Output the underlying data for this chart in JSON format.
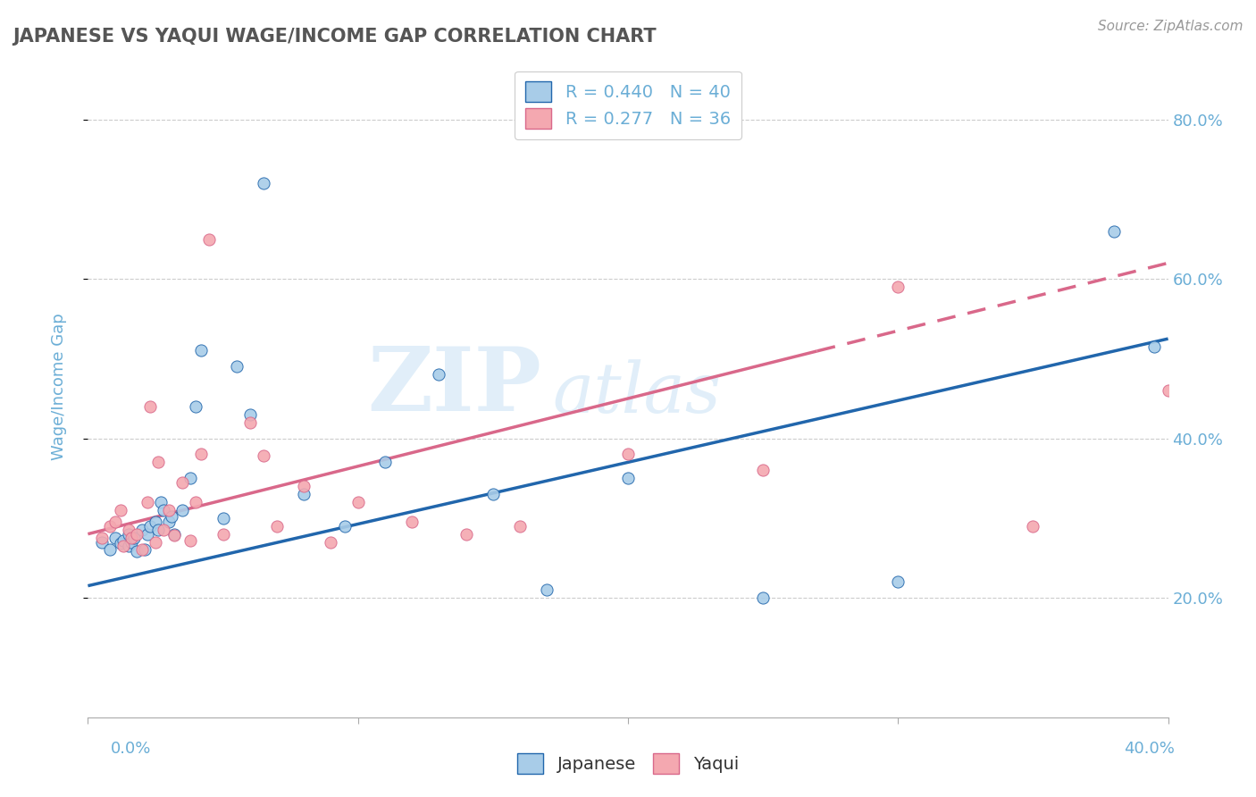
{
  "title": "JAPANESE VS YAQUI WAGE/INCOME GAP CORRELATION CHART",
  "source": "Source: ZipAtlas.com",
  "ylabel": "Wage/Income Gap",
  "watermark_zip": "ZIP",
  "watermark_atlas": "atlas",
  "legend1_r": "0.440",
  "legend1_n": "40",
  "legend2_r": "0.277",
  "legend2_n": "36",
  "japanese_color": "#a8cce8",
  "yaqui_color": "#f4a8b0",
  "japanese_line_color": "#2166ac",
  "yaqui_line_color": "#d9688a",
  "right_yticks": [
    0.2,
    0.4,
    0.6,
    0.8
  ],
  "right_ytick_labels": [
    "20.0%",
    "40.0%",
    "60.0%",
    "80.0%"
  ],
  "xmin": 0.0,
  "xmax": 0.4,
  "ymin": 0.05,
  "ymax": 0.88,
  "japanese_x": [
    0.005,
    0.008,
    0.01,
    0.012,
    0.013,
    0.015,
    0.015,
    0.016,
    0.017,
    0.018,
    0.02,
    0.021,
    0.022,
    0.023,
    0.025,
    0.026,
    0.027,
    0.028,
    0.03,
    0.031,
    0.032,
    0.035,
    0.038,
    0.04,
    0.042,
    0.05,
    0.055,
    0.06,
    0.065,
    0.08,
    0.095,
    0.11,
    0.13,
    0.15,
    0.17,
    0.2,
    0.25,
    0.3,
    0.38,
    0.395
  ],
  "japanese_y": [
    0.27,
    0.26,
    0.275,
    0.268,
    0.272,
    0.265,
    0.28,
    0.27,
    0.275,
    0.258,
    0.285,
    0.26,
    0.28,
    0.29,
    0.295,
    0.285,
    0.32,
    0.31,
    0.295,
    0.302,
    0.28,
    0.31,
    0.35,
    0.44,
    0.51,
    0.3,
    0.49,
    0.43,
    0.72,
    0.33,
    0.29,
    0.37,
    0.48,
    0.33,
    0.21,
    0.35,
    0.2,
    0.22,
    0.66,
    0.515
  ],
  "yaqui_x": [
    0.005,
    0.008,
    0.01,
    0.012,
    0.013,
    0.015,
    0.016,
    0.018,
    0.02,
    0.022,
    0.023,
    0.025,
    0.026,
    0.028,
    0.03,
    0.032,
    0.035,
    0.038,
    0.04,
    0.042,
    0.045,
    0.05,
    0.06,
    0.065,
    0.07,
    0.08,
    0.09,
    0.1,
    0.12,
    0.14,
    0.16,
    0.2,
    0.25,
    0.3,
    0.35,
    0.4
  ],
  "yaqui_y": [
    0.275,
    0.29,
    0.295,
    0.31,
    0.265,
    0.285,
    0.275,
    0.28,
    0.26,
    0.32,
    0.44,
    0.27,
    0.37,
    0.285,
    0.31,
    0.278,
    0.345,
    0.272,
    0.32,
    0.38,
    0.65,
    0.28,
    0.42,
    0.378,
    0.29,
    0.34,
    0.27,
    0.32,
    0.295,
    0.28,
    0.29,
    0.38,
    0.36,
    0.59,
    0.29,
    0.46
  ],
  "japanese_line_x": [
    0.0,
    0.4
  ],
  "japanese_line_y": [
    0.215,
    0.525
  ],
  "yaqui_line_x": [
    0.0,
    0.4
  ],
  "yaqui_line_y": [
    0.28,
    0.62
  ],
  "grid_color": "#cccccc",
  "background_color": "#ffffff",
  "title_color": "#555555",
  "tick_label_color": "#6baed6"
}
